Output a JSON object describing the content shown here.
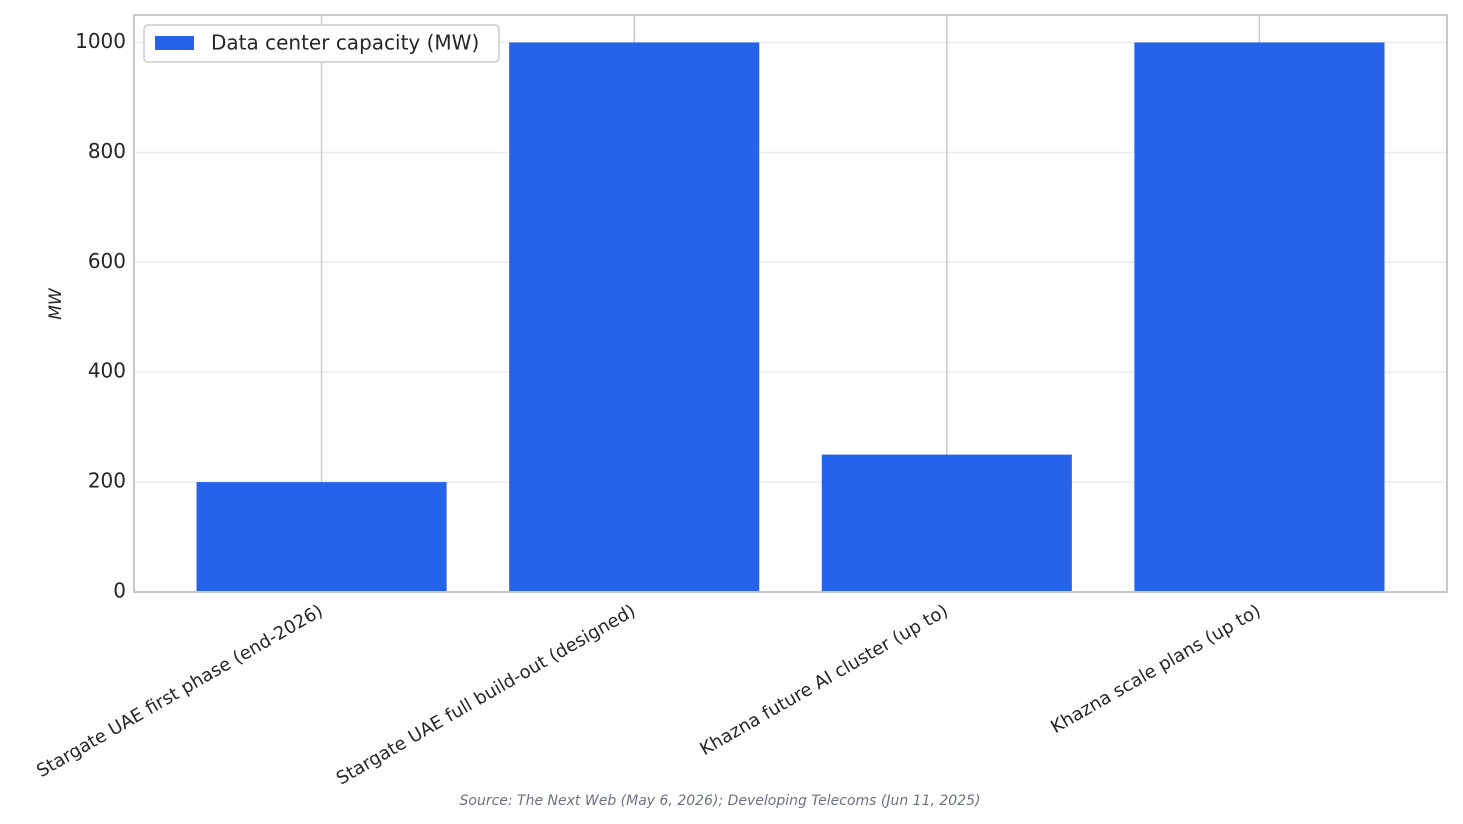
{
  "chart_data": {
    "type": "bar",
    "categories": [
      "Stargate UAE first phase (end-2026)",
      "Stargate UAE full build-out (designed)",
      "Khazna future AI cluster (up to)",
      "Khazna scale plans (up to)"
    ],
    "series": [
      {
        "name": "Data center capacity (MW)",
        "color": "#2563eb",
        "values": [
          200,
          1000,
          250,
          1000
        ]
      }
    ],
    "y_label": "MW",
    "ylim": [
      0,
      1050
    ],
    "yticks": [
      0,
      200,
      400,
      600,
      800,
      1000
    ],
    "grid": true,
    "legend": "upper left",
    "source": "Source: The Next Web (May 6, 2026); Developing Telecoms (Jun 11, 2025)"
  }
}
